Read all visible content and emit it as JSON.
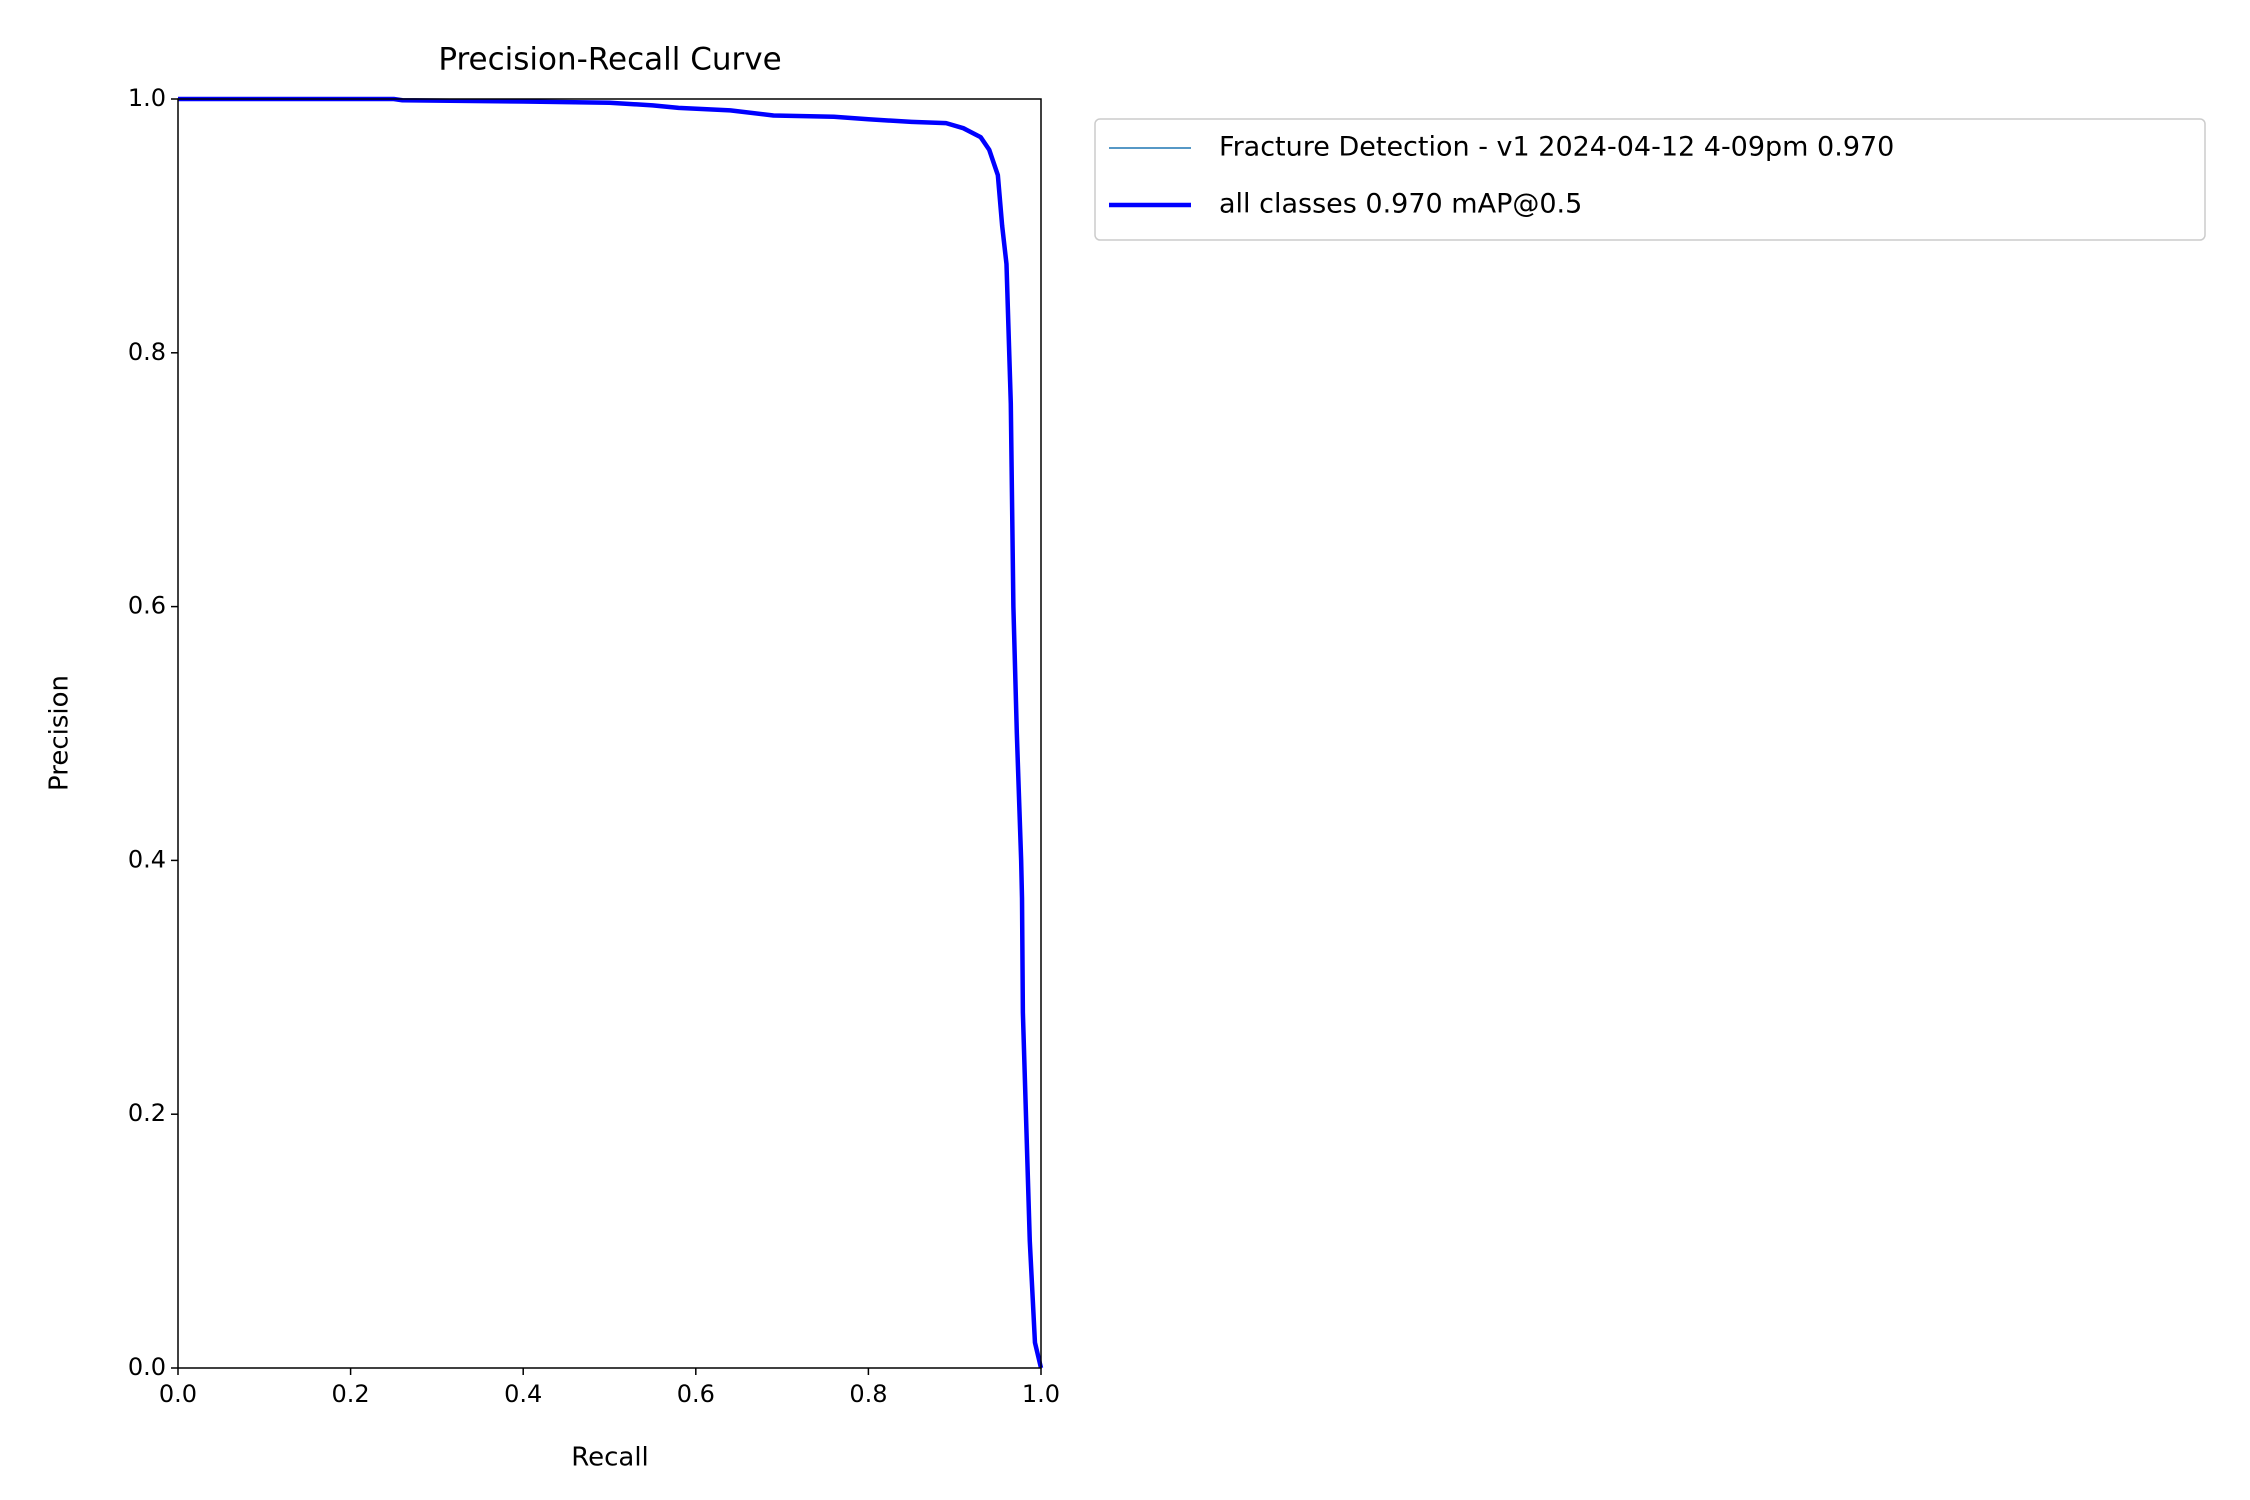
{
  "chart_data": {
    "type": "line",
    "title": "Precision-Recall Curve",
    "xlabel": "Recall",
    "ylabel": "Precision",
    "xlim": [
      0,
      1
    ],
    "ylim": [
      0,
      1
    ],
    "xticks": [
      {
        "value": 0,
        "label": "0.0"
      },
      0.2,
      0.4,
      0.6,
      0.8,
      {
        "value": 1,
        "label": "1.0"
      }
    ],
    "yticks": [
      {
        "value": 0,
        "label": "0.0"
      },
      0.2,
      0.4,
      0.6,
      0.8,
      {
        "value": 1,
        "label": "1.0"
      }
    ],
    "legend": "outside-upper-left",
    "x": [
      0,
      0.25,
      0.26,
      0.4,
      0.5,
      0.55,
      0.58,
      0.64,
      0.69,
      0.76,
      0.8,
      0.85,
      0.89,
      0.91,
      0.93,
      0.94,
      0.95,
      0.955,
      0.96,
      0.965,
      0.968,
      0.972,
      0.977,
      0.978,
      0.979,
      0.987,
      0.993,
      1.0
    ],
    "series": [
      {
        "name": "Fracture Detection - v1 2024-04-12 4-09pm 0.970",
        "color": "#1f77b4",
        "width": 1.5,
        "values": [
          1,
          1,
          0.999,
          0.998,
          0.997,
          0.995,
          0.993,
          0.991,
          0.987,
          0.986,
          0.984,
          0.982,
          0.981,
          0.977,
          0.97,
          0.96,
          0.94,
          0.9,
          0.87,
          0.76,
          0.6,
          0.5,
          0.4,
          0.37,
          0.28,
          0.1,
          0.02,
          0
        ]
      },
      {
        "name": "all classes 0.970 mAP@0.5",
        "color": "#0000ff",
        "width": 4.5,
        "values": [
          1,
          1,
          0.999,
          0.998,
          0.997,
          0.995,
          0.993,
          0.991,
          0.987,
          0.986,
          0.984,
          0.982,
          0.981,
          0.977,
          0.97,
          0.96,
          0.94,
          0.9,
          0.87,
          0.76,
          0.6,
          0.5,
          0.4,
          0.37,
          0.28,
          0.1,
          0.02,
          0
        ]
      }
    ]
  }
}
